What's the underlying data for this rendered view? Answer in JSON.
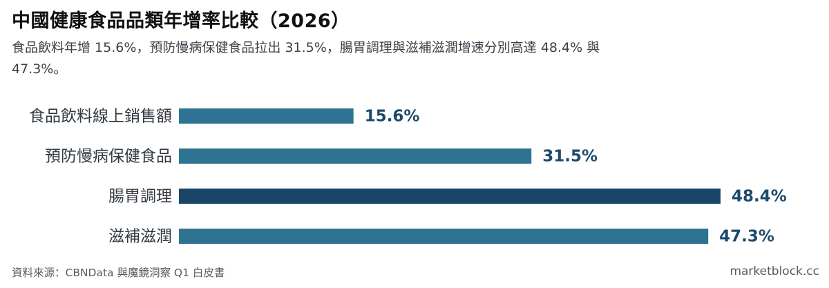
{
  "title": "中國健康食品品類年增率比較（2026）",
  "subtitle": "食品飲料年增 15.6%，預防慢病保健食品拉出 31.5%，腸胃調理與滋補滋潤增速分別高達 48.4% 與 47.3%。",
  "footer": {
    "source": "資料來源：CBNData 與魔鏡洞察 Q1 白皮書",
    "brand": "marketblock.cc"
  },
  "colors": {
    "bar": "#2e7391",
    "bar_highlight": "#1a4566",
    "value_text": "#1d4a6b"
  },
  "chart_data": {
    "type": "bar",
    "orientation": "horizontal",
    "title": "中國健康食品品類年增率比較（2026）",
    "categories": [
      "食品飲料線上銷售額",
      "預防慢病保健食品",
      "腸胃調理",
      "滋補滋潤"
    ],
    "values": [
      15.6,
      31.5,
      48.4,
      47.3
    ],
    "value_labels": [
      "15.6%",
      "31.5%",
      "48.4%",
      "47.3%"
    ],
    "unit": "%",
    "highlight_index": 2,
    "xlim": [
      0,
      48.4
    ],
    "grid": false,
    "legend": "none"
  }
}
